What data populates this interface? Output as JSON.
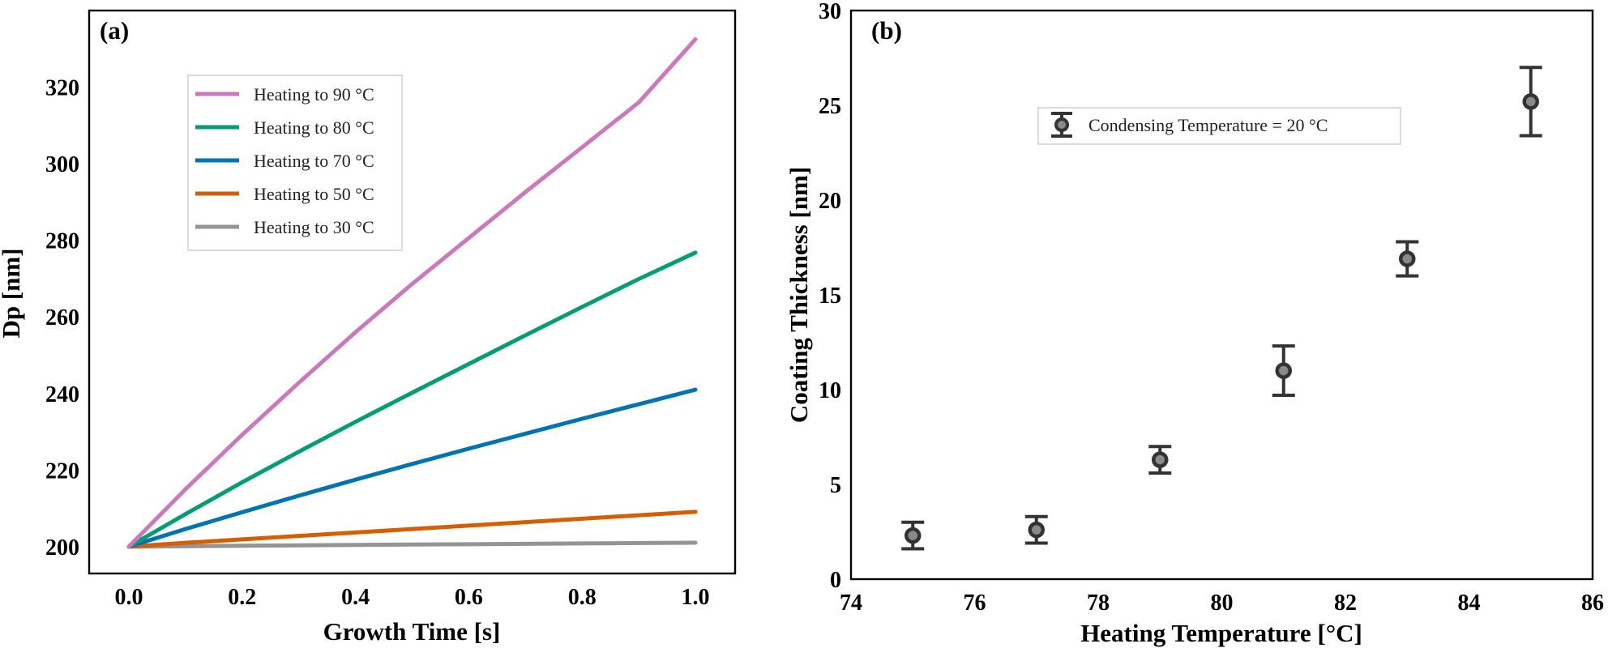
{
  "chart_data": [
    {
      "type": "line",
      "panel_label": "(a)",
      "title": "",
      "xlabel": "Growth Time [s]",
      "ylabel": "Dp [nm]",
      "xlim": [
        -0.07,
        1.07
      ],
      "ylim": [
        193,
        340
      ],
      "xticks": [
        "0.0",
        "0.2",
        "0.4",
        "0.6",
        "0.8",
        "1.0"
      ],
      "yticks": [
        "200",
        "220",
        "240",
        "260",
        "280",
        "300",
        "320"
      ],
      "grid": false,
      "legend_position": "upper-left",
      "series": [
        {
          "name": "Heating to 90 °C",
          "color": "#cc78bc",
          "x": [
            0,
            0.1,
            0.2,
            0.3,
            0.4,
            0.5,
            0.6,
            0.7,
            0.8,
            0.9,
            1.0
          ],
          "y": [
            200,
            215,
            229.2,
            242.8,
            256,
            268.6,
            280.6,
            292.6,
            304.3,
            316,
            332.5
          ]
        },
        {
          "name": "Heating to 80 °C",
          "color": "#029e73",
          "x": [
            0,
            0.1,
            0.2,
            0.3,
            0.4,
            0.5,
            0.6,
            0.7,
            0.8,
            0.9,
            1.0
          ],
          "y": [
            200,
            208.5,
            216.8,
            224.8,
            232.6,
            240.2,
            247.7,
            255.2,
            262.6,
            269.9,
            276.8
          ]
        },
        {
          "name": "Heating to 70 °C",
          "color": "#0173b2",
          "x": [
            0,
            0.1,
            0.2,
            0.3,
            0.4,
            0.5,
            0.6,
            0.7,
            0.8,
            0.9,
            1.0
          ],
          "y": [
            200,
            204.6,
            209,
            213.3,
            217.5,
            221.6,
            225.6,
            229.5,
            233.4,
            237.2,
            241
          ]
        },
        {
          "name": "Heating to 50 °C",
          "color": "#d55e00",
          "x": [
            0,
            0.1,
            0.2,
            0.3,
            0.4,
            0.5,
            0.6,
            0.7,
            0.8,
            0.9,
            1.0
          ],
          "y": [
            200,
            201,
            201.9,
            202.8,
            203.7,
            204.6,
            205.5,
            206.4,
            207.3,
            208.2,
            209.1
          ]
        },
        {
          "name": "Heating to 30 °C",
          "color": "#949494",
          "x": [
            0,
            0.1,
            0.2,
            0.3,
            0.4,
            0.5,
            0.6,
            0.7,
            0.8,
            0.9,
            1.0
          ],
          "y": [
            200,
            200.1,
            200.25,
            200.35,
            200.45,
            200.55,
            200.65,
            200.75,
            200.85,
            200.95,
            201.05
          ]
        }
      ]
    },
    {
      "type": "scatter",
      "panel_label": "(b)",
      "title": "",
      "xlabel": "Heating Temperature [°C]",
      "ylabel": "Coating Thickness [nm]",
      "xlim": [
        74,
        86
      ],
      "ylim": [
        0,
        30
      ],
      "xticks": [
        "74",
        "76",
        "78",
        "80",
        "82",
        "84",
        "86"
      ],
      "yticks": [
        "0",
        "5",
        "10",
        "15",
        "20",
        "25",
        "30"
      ],
      "grid": false,
      "legend_position": "upper-center",
      "series": [
        {
          "name": "Condensing Temperature = 20 °C",
          "color": "#333333",
          "x": [
            75,
            77,
            79,
            81,
            83,
            85
          ],
          "y": [
            2.3,
            2.6,
            6.3,
            11.0,
            16.9,
            25.2
          ],
          "yerr": [
            0.7,
            0.7,
            0.7,
            1.3,
            0.9,
            1.8
          ]
        }
      ]
    }
  ]
}
